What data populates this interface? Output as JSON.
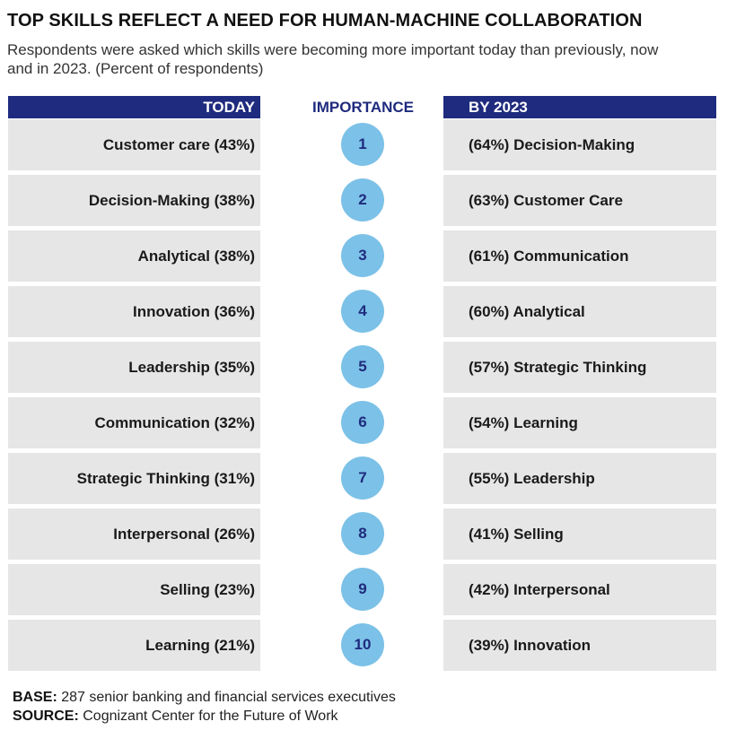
{
  "title": "TOP SKILLS REFLECT A NEED FOR HUMAN-MACHINE COLLABORATION",
  "subtitle": "Respondents were asked which skills were becoming more important today than previously, now and in 2023. (Percent of respondents)",
  "headers": {
    "today": "TODAY",
    "importance": "IMPORTANCE",
    "by2023": "BY 2023"
  },
  "footer": {
    "base_label": "BASE:",
    "base_text": "287 senior banking and financial services executives",
    "source_label": "SOURCE:",
    "source_text": "Cognizant Center for the Future of Work"
  },
  "colors": {
    "header_bg": "#1f2b7e",
    "badge_fill": "#7cc1e7",
    "row_bg": "#e6e6e6"
  },
  "chart_data": {
    "type": "table",
    "title": "TOP SKILLS REFLECT A NEED FOR HUMAN-MACHINE COLLABORATION",
    "columns": [
      "TODAY",
      "IMPORTANCE",
      "BY 2023"
    ],
    "rows": [
      {
        "rank": "1",
        "today": "Customer care (43%)",
        "by2023": "(64%) Decision-Making"
      },
      {
        "rank": "2",
        "today": "Decision-Making (38%)",
        "by2023": "(63%) Customer Care"
      },
      {
        "rank": "3",
        "today": "Analytical (38%)",
        "by2023": "(61%) Communication"
      },
      {
        "rank": "4",
        "today": "Innovation (36%)",
        "by2023": "(60%) Analytical"
      },
      {
        "rank": "5",
        "today": "Leadership (35%)",
        "by2023": "(57%) Strategic Thinking"
      },
      {
        "rank": "6",
        "today": "Communication (32%)",
        "by2023": "(54%) Learning"
      },
      {
        "rank": "7",
        "today": "Strategic Thinking (31%)",
        "by2023": "(55%) Leadership"
      },
      {
        "rank": "8",
        "today": "Interpersonal (26%)",
        "by2023": "(41%) Selling"
      },
      {
        "rank": "9",
        "today": "Selling (23%)",
        "by2023": "(42%) Interpersonal"
      },
      {
        "rank": "10",
        "today": "Learning (21%)",
        "by2023": "(39%) Innovation"
      }
    ]
  }
}
